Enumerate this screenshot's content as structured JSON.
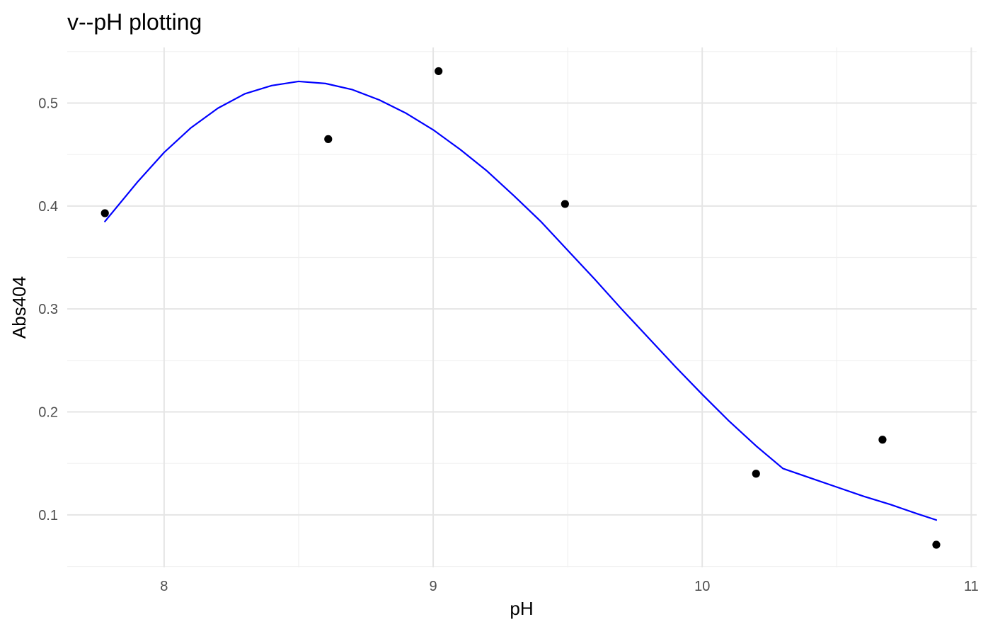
{
  "chart_data": {
    "type": "scatter",
    "title": "v--pH plotting",
    "xlabel": "pH",
    "ylabel": "Abs404",
    "xlim": [
      7.64,
      11.02
    ],
    "ylim": [
      0.049,
      0.554
    ],
    "x_ticks": [
      8,
      9,
      10,
      11
    ],
    "y_ticks": [
      0.1,
      0.2,
      0.3,
      0.4,
      0.5
    ],
    "x_tick_labels": [
      "8",
      "9",
      "10",
      "11"
    ],
    "y_tick_labels": [
      "0.1",
      "0.2",
      "0.3",
      "0.4",
      "0.5"
    ],
    "grid": true,
    "legend": "none",
    "series": [
      {
        "type": "points",
        "color": "#000000",
        "x": [
          7.78,
          8.61,
          9.02,
          9.49,
          10.2,
          10.67,
          10.87
        ],
        "y": [
          0.393,
          0.465,
          0.531,
          0.402,
          0.14,
          0.173,
          0.071
        ]
      },
      {
        "type": "line",
        "color": "#0000ff",
        "x": [
          7.78,
          7.9,
          8.0,
          8.1,
          8.2,
          8.3,
          8.4,
          8.5,
          8.6,
          8.7,
          8.8,
          8.9,
          9.0,
          9.1,
          9.2,
          9.3,
          9.4,
          9.5,
          9.6,
          9.7,
          9.8,
          9.9,
          10.0,
          10.1,
          10.2,
          10.3,
          10.4,
          10.5,
          10.6,
          10.7,
          10.8,
          10.87
        ],
        "y": [
          0.385,
          0.423,
          0.452,
          0.476,
          0.495,
          0.509,
          0.517,
          0.521,
          0.519,
          0.513,
          0.503,
          0.49,
          0.474,
          0.455,
          0.434,
          0.41,
          0.385,
          0.357,
          0.329,
          0.3,
          0.272,
          0.244,
          0.217,
          0.191,
          0.167,
          0.145,
          0.136,
          0.127,
          0.118,
          0.11,
          0.101,
          0.095
        ]
      }
    ],
    "colors": {
      "background": "#ffffff",
      "grid_major": "#e5e5e5",
      "grid_minor": "#f0f0f0",
      "points": "#000000",
      "fit_line": "#0000ff"
    }
  }
}
